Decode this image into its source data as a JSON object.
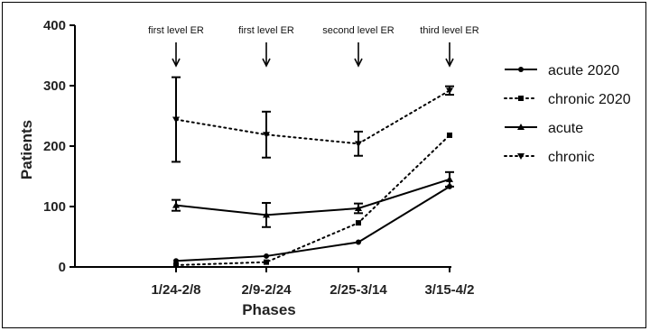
{
  "chart_data": {
    "type": "line",
    "xlabel": "Phases",
    "ylabel": "Patients",
    "categories": [
      "1/24-2/8",
      "2/9-2/24",
      "2/25-3/14",
      "3/15-4/2"
    ],
    "ylim": [
      0,
      400
    ],
    "yticks": [
      "0",
      "100",
      "200",
      "300",
      "400"
    ],
    "grid": false,
    "legend_position": "right",
    "annotations": [
      "first level ER",
      "first level ER",
      "second level ER",
      "third level ER"
    ],
    "series": [
      {
        "name": "acute 2020",
        "style": "solid",
        "marker": "circle",
        "values": [
          10,
          18,
          41,
          133
        ],
        "errors": [
          null,
          null,
          null,
          null
        ]
      },
      {
        "name": "chronic 2020",
        "style": "dotted",
        "marker": "square",
        "values": [
          3,
          8,
          73,
          218
        ],
        "errors": [
          null,
          null,
          null,
          null
        ]
      },
      {
        "name": "acute",
        "style": "solid",
        "marker": "triangle",
        "values": [
          102,
          86,
          97,
          145
        ],
        "errors": [
          9,
          20,
          8,
          12
        ]
      },
      {
        "name": "chronic",
        "style": "dotted",
        "marker": "triangle-down",
        "values": [
          244,
          219,
          204,
          292
        ],
        "errors": [
          70,
          38,
          20,
          7
        ]
      }
    ],
    "color": "#000000"
  }
}
